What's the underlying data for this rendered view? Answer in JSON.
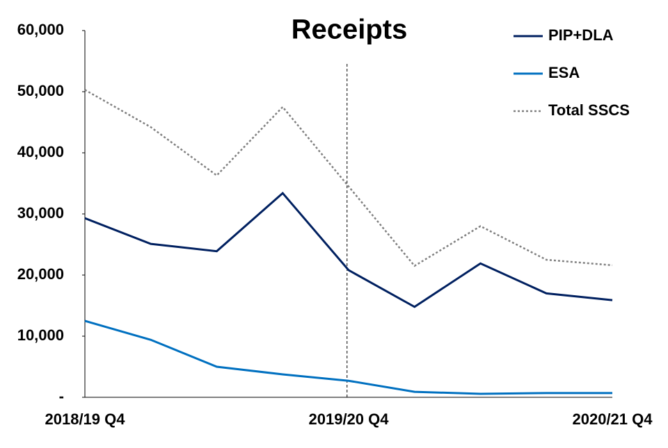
{
  "chart_data": {
    "type": "line",
    "title": "Receipts",
    "categories": [
      "2018/19 Q4",
      null,
      null,
      null,
      "2019/20 Q4",
      null,
      null,
      null,
      "2020/21 Q4"
    ],
    "series": [
      {
        "name": "PIP+DLA",
        "color": "#002060",
        "style": "solid",
        "values": [
          29300,
          25100,
          23900,
          33400,
          20800,
          14800,
          21900,
          17000,
          15900
        ]
      },
      {
        "name": "ESA",
        "color": "#0070c0",
        "style": "solid",
        "values": [
          12500,
          9400,
          5000,
          3750,
          2700,
          900,
          570,
          700,
          700
        ]
      },
      {
        "name": "Total SSCS",
        "color": "#808080",
        "style": "dotted",
        "values": [
          50300,
          44200,
          36300,
          47500,
          34500,
          21500,
          28000,
          22500,
          21600
        ]
      }
    ],
    "ylim": [
      0,
      60000
    ],
    "yticks": [
      {
        "value": 0,
        "label": "-"
      },
      {
        "value": 10000,
        "label": "10,000"
      },
      {
        "value": 20000,
        "label": "20,000"
      },
      {
        "value": 30000,
        "label": "30,000"
      },
      {
        "value": 40000,
        "label": "40,000"
      },
      {
        "value": 50000,
        "label": "50,000"
      },
      {
        "value": 60000,
        "label": "60,000"
      }
    ],
    "grid": false,
    "legend": "top-right"
  }
}
